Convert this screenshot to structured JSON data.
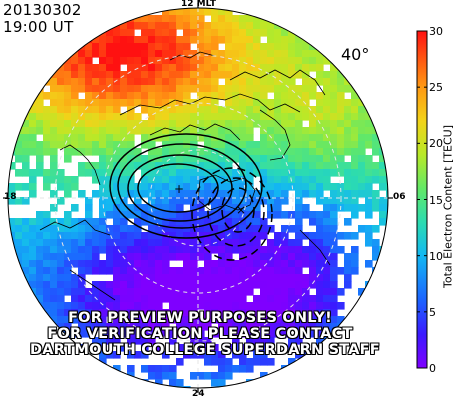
{
  "header": {
    "date": "20130302",
    "time": "19:00 UT"
  },
  "map": {
    "mlt_labels": {
      "top": "12 MLT",
      "left": "18",
      "right": "06",
      "bottom": "24"
    },
    "latitude_label": "40°"
  },
  "colorbar": {
    "title": "Total Electron Content [TECU]",
    "min": 0,
    "max": 30,
    "ticks": [
      "0",
      "5",
      "10",
      "15",
      "20",
      "25",
      "30"
    ],
    "stops": [
      {
        "value": 0,
        "color": "#7f00ff"
      },
      {
        "value": 3,
        "color": "#3b1aff"
      },
      {
        "value": 6,
        "color": "#1c62ff"
      },
      {
        "value": 10,
        "color": "#13b8f2"
      },
      {
        "value": 13,
        "color": "#2cdcb0"
      },
      {
        "value": 16,
        "color": "#63e866"
      },
      {
        "value": 19,
        "color": "#b8e928"
      },
      {
        "value": 22,
        "color": "#f2d319"
      },
      {
        "value": 25,
        "color": "#ff9913"
      },
      {
        "value": 28,
        "color": "#ff4a12"
      },
      {
        "value": 30,
        "color": "#ff1111"
      }
    ]
  },
  "watermark": [
    "FOR PREVIEW PURPOSES ONLY!",
    "FOR VERIFICATION PLEASE CONTACT",
    "DARTMOUTH COLLEGE SUPERDARN STAFF"
  ]
}
